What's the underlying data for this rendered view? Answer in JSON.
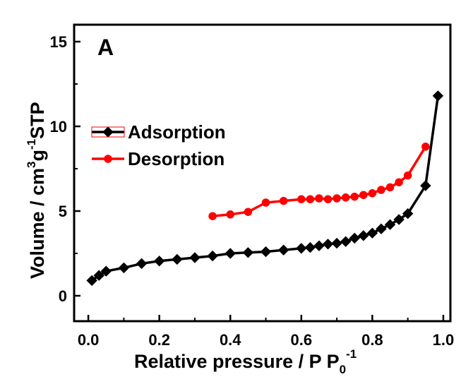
{
  "chart_data": {
    "type": "line",
    "panel_label": "A",
    "xlabel": {
      "main": "Relative pressure / P P",
      "sub": "0",
      "sup": "-1"
    },
    "ylabel": {
      "part1": "Volume / cm",
      "sup1": "3",
      "part2": "g",
      "sup2": "-1",
      "part3": "STP"
    },
    "xlim": [
      -0.04,
      1.02
    ],
    "ylim": [
      -1.5,
      16.0
    ],
    "x_ticks": [
      0.0,
      0.2,
      0.4,
      0.6,
      0.8,
      1.0
    ],
    "x_tick_labels": [
      "0.0",
      "0.2",
      "0.4",
      "0.6",
      "0.8",
      "1.0"
    ],
    "y_ticks": [
      0,
      5,
      10,
      15
    ],
    "y_tick_labels": [
      "0",
      "5",
      "10",
      "15"
    ],
    "legend_position": "center-left",
    "series": [
      {
        "name": "Adsorption",
        "color": "#000000",
        "marker": "diamond",
        "x": [
          0.01,
          0.03,
          0.05,
          0.1,
          0.15,
          0.2,
          0.25,
          0.3,
          0.35,
          0.4,
          0.45,
          0.5,
          0.55,
          0.6,
          0.625,
          0.65,
          0.675,
          0.7,
          0.725,
          0.75,
          0.775,
          0.8,
          0.825,
          0.85,
          0.875,
          0.9,
          0.95,
          0.985
        ],
        "y": [
          0.9,
          1.2,
          1.45,
          1.65,
          1.9,
          2.05,
          2.15,
          2.25,
          2.35,
          2.5,
          2.55,
          2.6,
          2.7,
          2.8,
          2.85,
          2.95,
          3.05,
          3.1,
          3.2,
          3.4,
          3.55,
          3.7,
          3.95,
          4.2,
          4.5,
          4.85,
          6.5,
          11.8
        ]
      },
      {
        "name": "Desorption",
        "color": "#ff0000",
        "marker": "circle",
        "x": [
          0.35,
          0.4,
          0.45,
          0.5,
          0.55,
          0.6,
          0.625,
          0.65,
          0.675,
          0.7,
          0.725,
          0.75,
          0.775,
          0.8,
          0.825,
          0.85,
          0.875,
          0.9,
          0.95
        ],
        "y": [
          4.7,
          4.8,
          4.95,
          5.5,
          5.6,
          5.7,
          5.7,
          5.75,
          5.7,
          5.75,
          5.8,
          5.85,
          5.95,
          6.05,
          6.25,
          6.4,
          6.7,
          7.1,
          8.8
        ]
      }
    ]
  }
}
